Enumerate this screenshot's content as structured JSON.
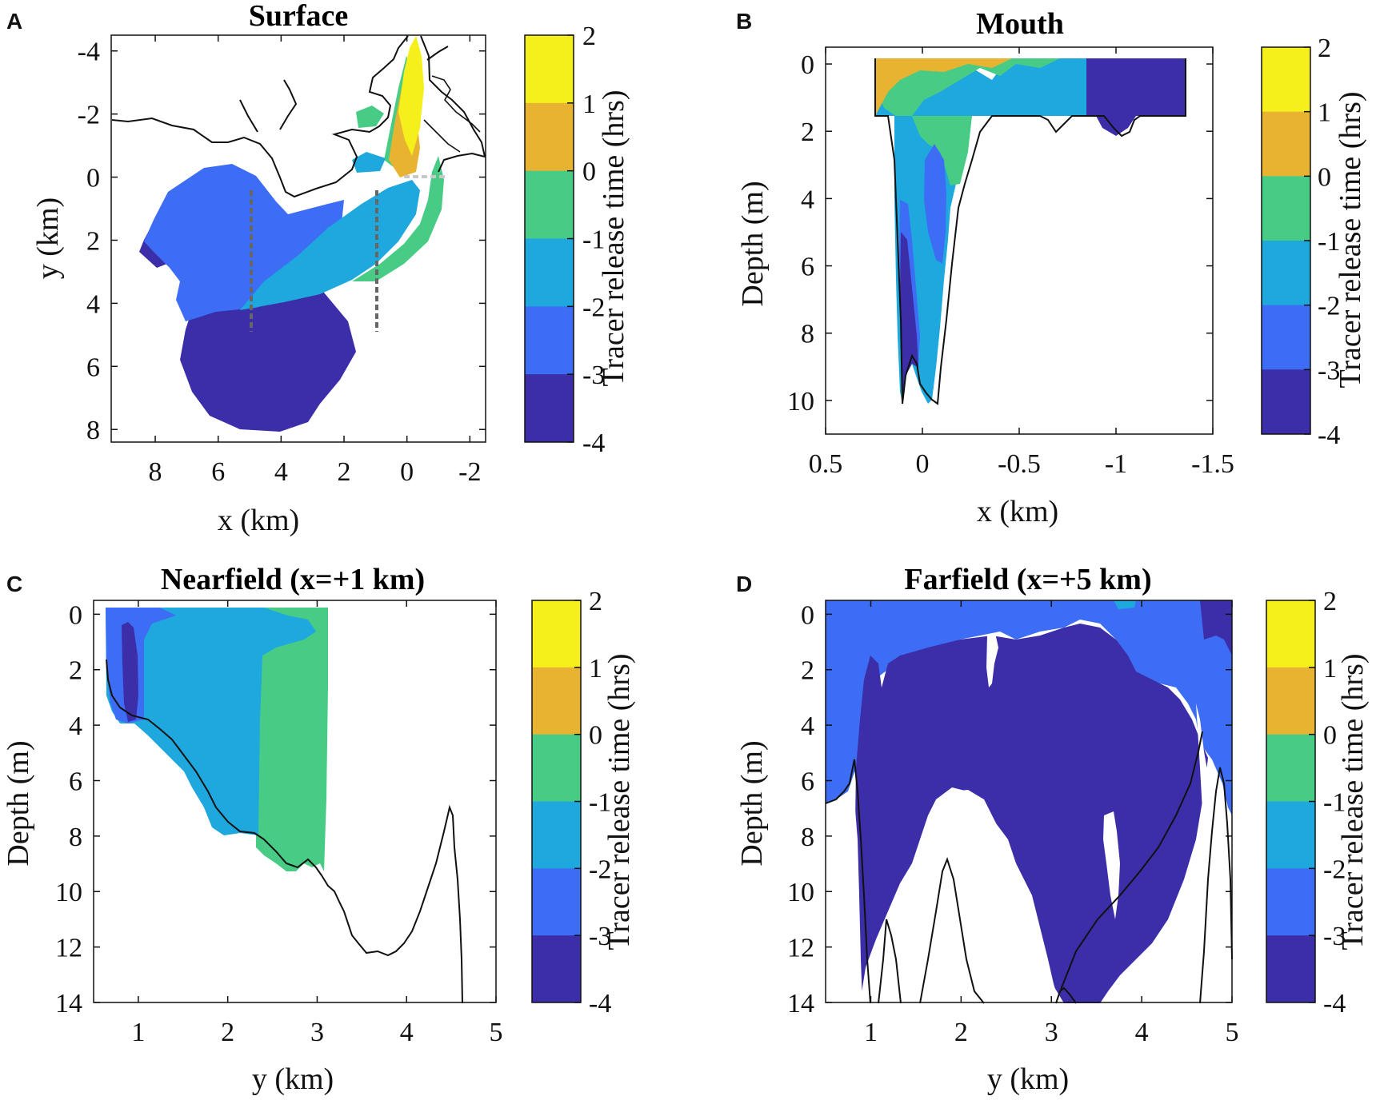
{
  "colormap": {
    "levels": [
      2,
      1,
      0,
      -1,
      -2,
      -3,
      -4
    ],
    "colors": [
      "#f5ef1c",
      "#e8b330",
      "#48cc85",
      "#1ea8de",
      "#3d6df5",
      "#3b2ea8"
    ],
    "outline": "#111111"
  },
  "chart_data": [
    {
      "panel": "A",
      "type": "heatmap",
      "title": "Surface",
      "xlabel": "x (km)",
      "ylabel": "y (km)",
      "xticks": [
        "8",
        "6",
        "4",
        "2",
        "0",
        "-2"
      ],
      "yticks": [
        "-4",
        "-2",
        "0",
        "2",
        "4",
        "6",
        "8"
      ],
      "xlim": [
        9.4,
        -2.5
      ],
      "ylim": [
        -4.5,
        8.4
      ],
      "colorbar_label": "Tracer release time (hrs)",
      "colorbar_ticks": [
        "2",
        "1",
        "0",
        "-1",
        "-2",
        "-3",
        "-4"
      ],
      "transects": [
        {
          "x": 5,
          "y_range": [
            0.5,
            4.9
          ]
        },
        {
          "x": 1,
          "y_range": [
            0.5,
            4.9
          ]
        }
      ]
    },
    {
      "panel": "B",
      "type": "heatmap",
      "title": "Mouth",
      "xlabel": "x (km)",
      "ylabel": "Depth (m)",
      "xticks": [
        "0.5",
        "0",
        "-0.5",
        "-1",
        "-1.5"
      ],
      "yticks": [
        "0",
        "2",
        "4",
        "6",
        "8",
        "10"
      ],
      "xlim": [
        0.5,
        -1.5
      ],
      "ylim": [
        -0.5,
        11
      ],
      "colorbar_label": "Tracer release time (hrs)",
      "colorbar_ticks": [
        "2",
        "1",
        "0",
        "-1",
        "-2",
        "-3",
        "-4"
      ]
    },
    {
      "panel": "C",
      "type": "heatmap",
      "title": "Nearfield (x=+1 km)",
      "xlabel": "y (km)",
      "ylabel": "Depth (m)",
      "xticks": [
        "1",
        "2",
        "3",
        "4",
        "5"
      ],
      "yticks": [
        "0",
        "2",
        "4",
        "6",
        "8",
        "10",
        "12",
        "14"
      ],
      "xlim": [
        0.5,
        5
      ],
      "ylim": [
        -0.5,
        14
      ],
      "colorbar_label": "Tracer release time (hrs)",
      "colorbar_ticks": [
        "2",
        "1",
        "0",
        "-1",
        "-2",
        "-3",
        "-4"
      ]
    },
    {
      "panel": "D",
      "type": "heatmap",
      "title": "Farfield (x=+5 km)",
      "xlabel": "y (km)",
      "ylabel": "Depth (m)",
      "xticks": [
        "1",
        "2",
        "3",
        "4",
        "5"
      ],
      "yticks": [
        "0",
        "2",
        "4",
        "6",
        "8",
        "10",
        "12",
        "14"
      ],
      "xlim": [
        0.5,
        5
      ],
      "ylim": [
        -0.5,
        14
      ],
      "colorbar_label": "Tracer release time (hrs)",
      "colorbar_ticks": [
        "2",
        "1",
        "0",
        "-1",
        "-2",
        "-3",
        "-4"
      ]
    }
  ]
}
